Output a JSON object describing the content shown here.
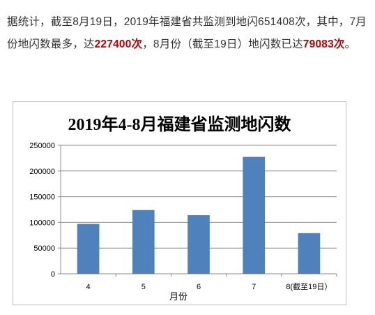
{
  "article": {
    "t1": "据统计，截至8月19日，2019年福建省共监测到地闪651408次，其中，7月份地闪数最多，达",
    "h1": "227400次",
    "t2": "，8月份（截至19日）地闪数已达",
    "h2": "79083次",
    "t3": "。"
  },
  "colors": {
    "bar": "#4f81bd",
    "highlight": "#c00000",
    "text": "#333333"
  },
  "chart_data": {
    "type": "bar",
    "title": "2019年4-8月福建省监测地闪数",
    "xlabel": "月份",
    "ylabel": "",
    "categories": [
      "4",
      "5",
      "6",
      "7",
      "8(截至19日）"
    ],
    "values": [
      97000,
      124000,
      114000,
      227400,
      79083
    ],
    "ylim": [
      0,
      250000
    ],
    "yticks": [
      0,
      50000,
      100000,
      150000,
      200000,
      250000
    ],
    "grid": true,
    "legend": "none"
  }
}
